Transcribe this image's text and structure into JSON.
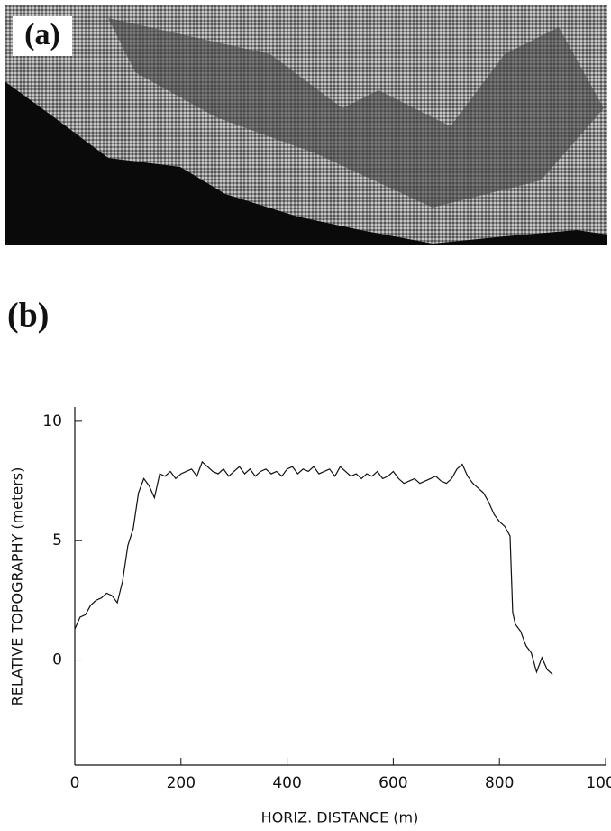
{
  "image_label": "(a)",
  "chart_data": {
    "type": "line",
    "panel_label": "(b)",
    "xlabel": "HORIZ. DISTANCE (m)",
    "ylabel": "RELATIVE TOPOGRAPHY (meters)",
    "xlim": [
      0,
      1000
    ],
    "xticks": [
      0,
      200,
      400,
      600,
      800,
      1000
    ],
    "ylim": [
      -4.4,
      10.6
    ],
    "yticks": [
      0,
      5,
      10
    ],
    "series": [
      {
        "color": "#111111",
        "x": [
          0,
          10,
          20,
          30,
          40,
          50,
          60,
          70,
          80,
          90,
          100,
          110,
          120,
          130,
          140,
          150,
          160,
          170,
          180,
          190,
          200,
          210,
          220,
          230,
          240,
          250,
          260,
          270,
          280,
          290,
          300,
          310,
          320,
          330,
          340,
          350,
          360,
          370,
          380,
          390,
          400,
          410,
          420,
          430,
          440,
          450,
          460,
          470,
          480,
          490,
          500,
          510,
          520,
          530,
          540,
          550,
          560,
          570,
          580,
          590,
          600,
          610,
          620,
          630,
          640,
          650,
          660,
          670,
          680,
          690,
          700,
          710,
          720,
          730,
          740,
          750,
          760,
          770,
          780,
          790,
          800,
          810,
          820,
          825,
          830,
          840,
          850,
          860,
          870,
          880,
          890,
          900
        ],
        "values": [
          1.3,
          1.8,
          1.9,
          2.3,
          2.5,
          2.6,
          2.8,
          2.7,
          2.4,
          3.3,
          4.8,
          5.5,
          7.0,
          7.6,
          7.3,
          6.8,
          7.8,
          7.7,
          7.9,
          7.6,
          7.8,
          7.9,
          8.0,
          7.7,
          8.3,
          8.1,
          7.9,
          7.8,
          8.0,
          7.7,
          7.9,
          8.1,
          7.8,
          8.0,
          7.7,
          7.9,
          8.0,
          7.8,
          7.9,
          7.7,
          8.0,
          8.1,
          7.8,
          8.0,
          7.9,
          8.1,
          7.8,
          7.9,
          8.0,
          7.7,
          8.1,
          7.9,
          7.7,
          7.8,
          7.6,
          7.8,
          7.7,
          7.9,
          7.6,
          7.7,
          7.9,
          7.6,
          7.4,
          7.5,
          7.6,
          7.4,
          7.5,
          7.6,
          7.7,
          7.5,
          7.4,
          7.6,
          8.0,
          8.2,
          7.7,
          7.4,
          7.2,
          7.0,
          6.6,
          6.1,
          5.8,
          5.6,
          5.2,
          2.0,
          1.5,
          1.2,
          0.6,
          0.3,
          -0.5,
          0.1,
          -0.4,
          -0.6
        ]
      }
    ]
  }
}
